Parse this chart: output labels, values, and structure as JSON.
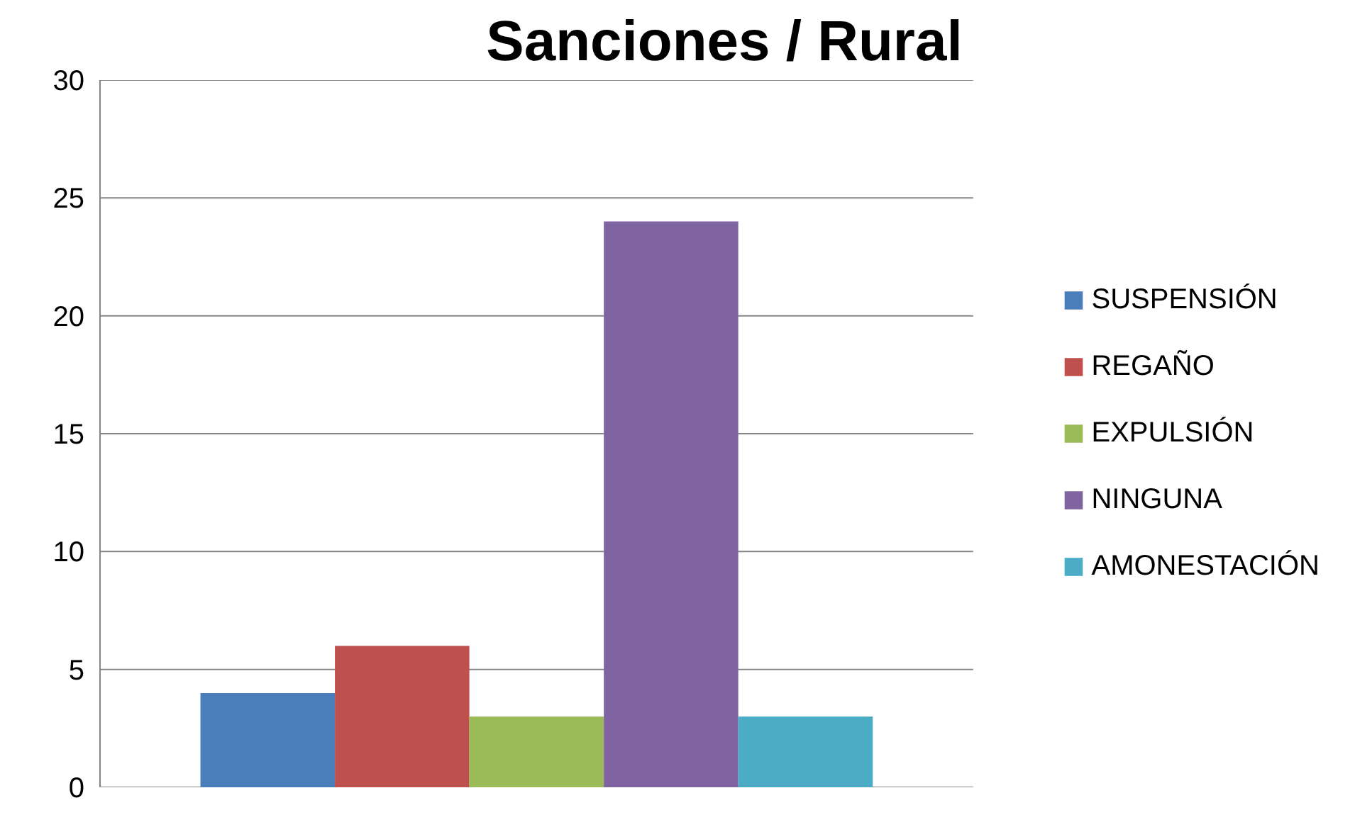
{
  "chart_data": {
    "type": "bar",
    "title": "Sanciones / Rural",
    "categories": [
      null
    ],
    "series": [
      {
        "name": "SUSPENSIÓN",
        "color": "#4a7ebb",
        "values": [
          4
        ]
      },
      {
        "name": "REGAÑO",
        "color": "#c0504d",
        "values": [
          6
        ]
      },
      {
        "name": "EXPULSIÓN",
        "color": "#9bbb59",
        "values": [
          3
        ]
      },
      {
        "name": "NINGUNA",
        "color": "#8064a2",
        "values": [
          24
        ]
      },
      {
        "name": "AMONESTACIÓN",
        "color": "#4bacc6",
        "values": [
          3
        ]
      }
    ],
    "ylim": [
      0,
      30
    ],
    "yticks": [
      0,
      5,
      10,
      15,
      20,
      25,
      30
    ],
    "grid": "y",
    "legend": "right",
    "tick_labels": "y"
  }
}
